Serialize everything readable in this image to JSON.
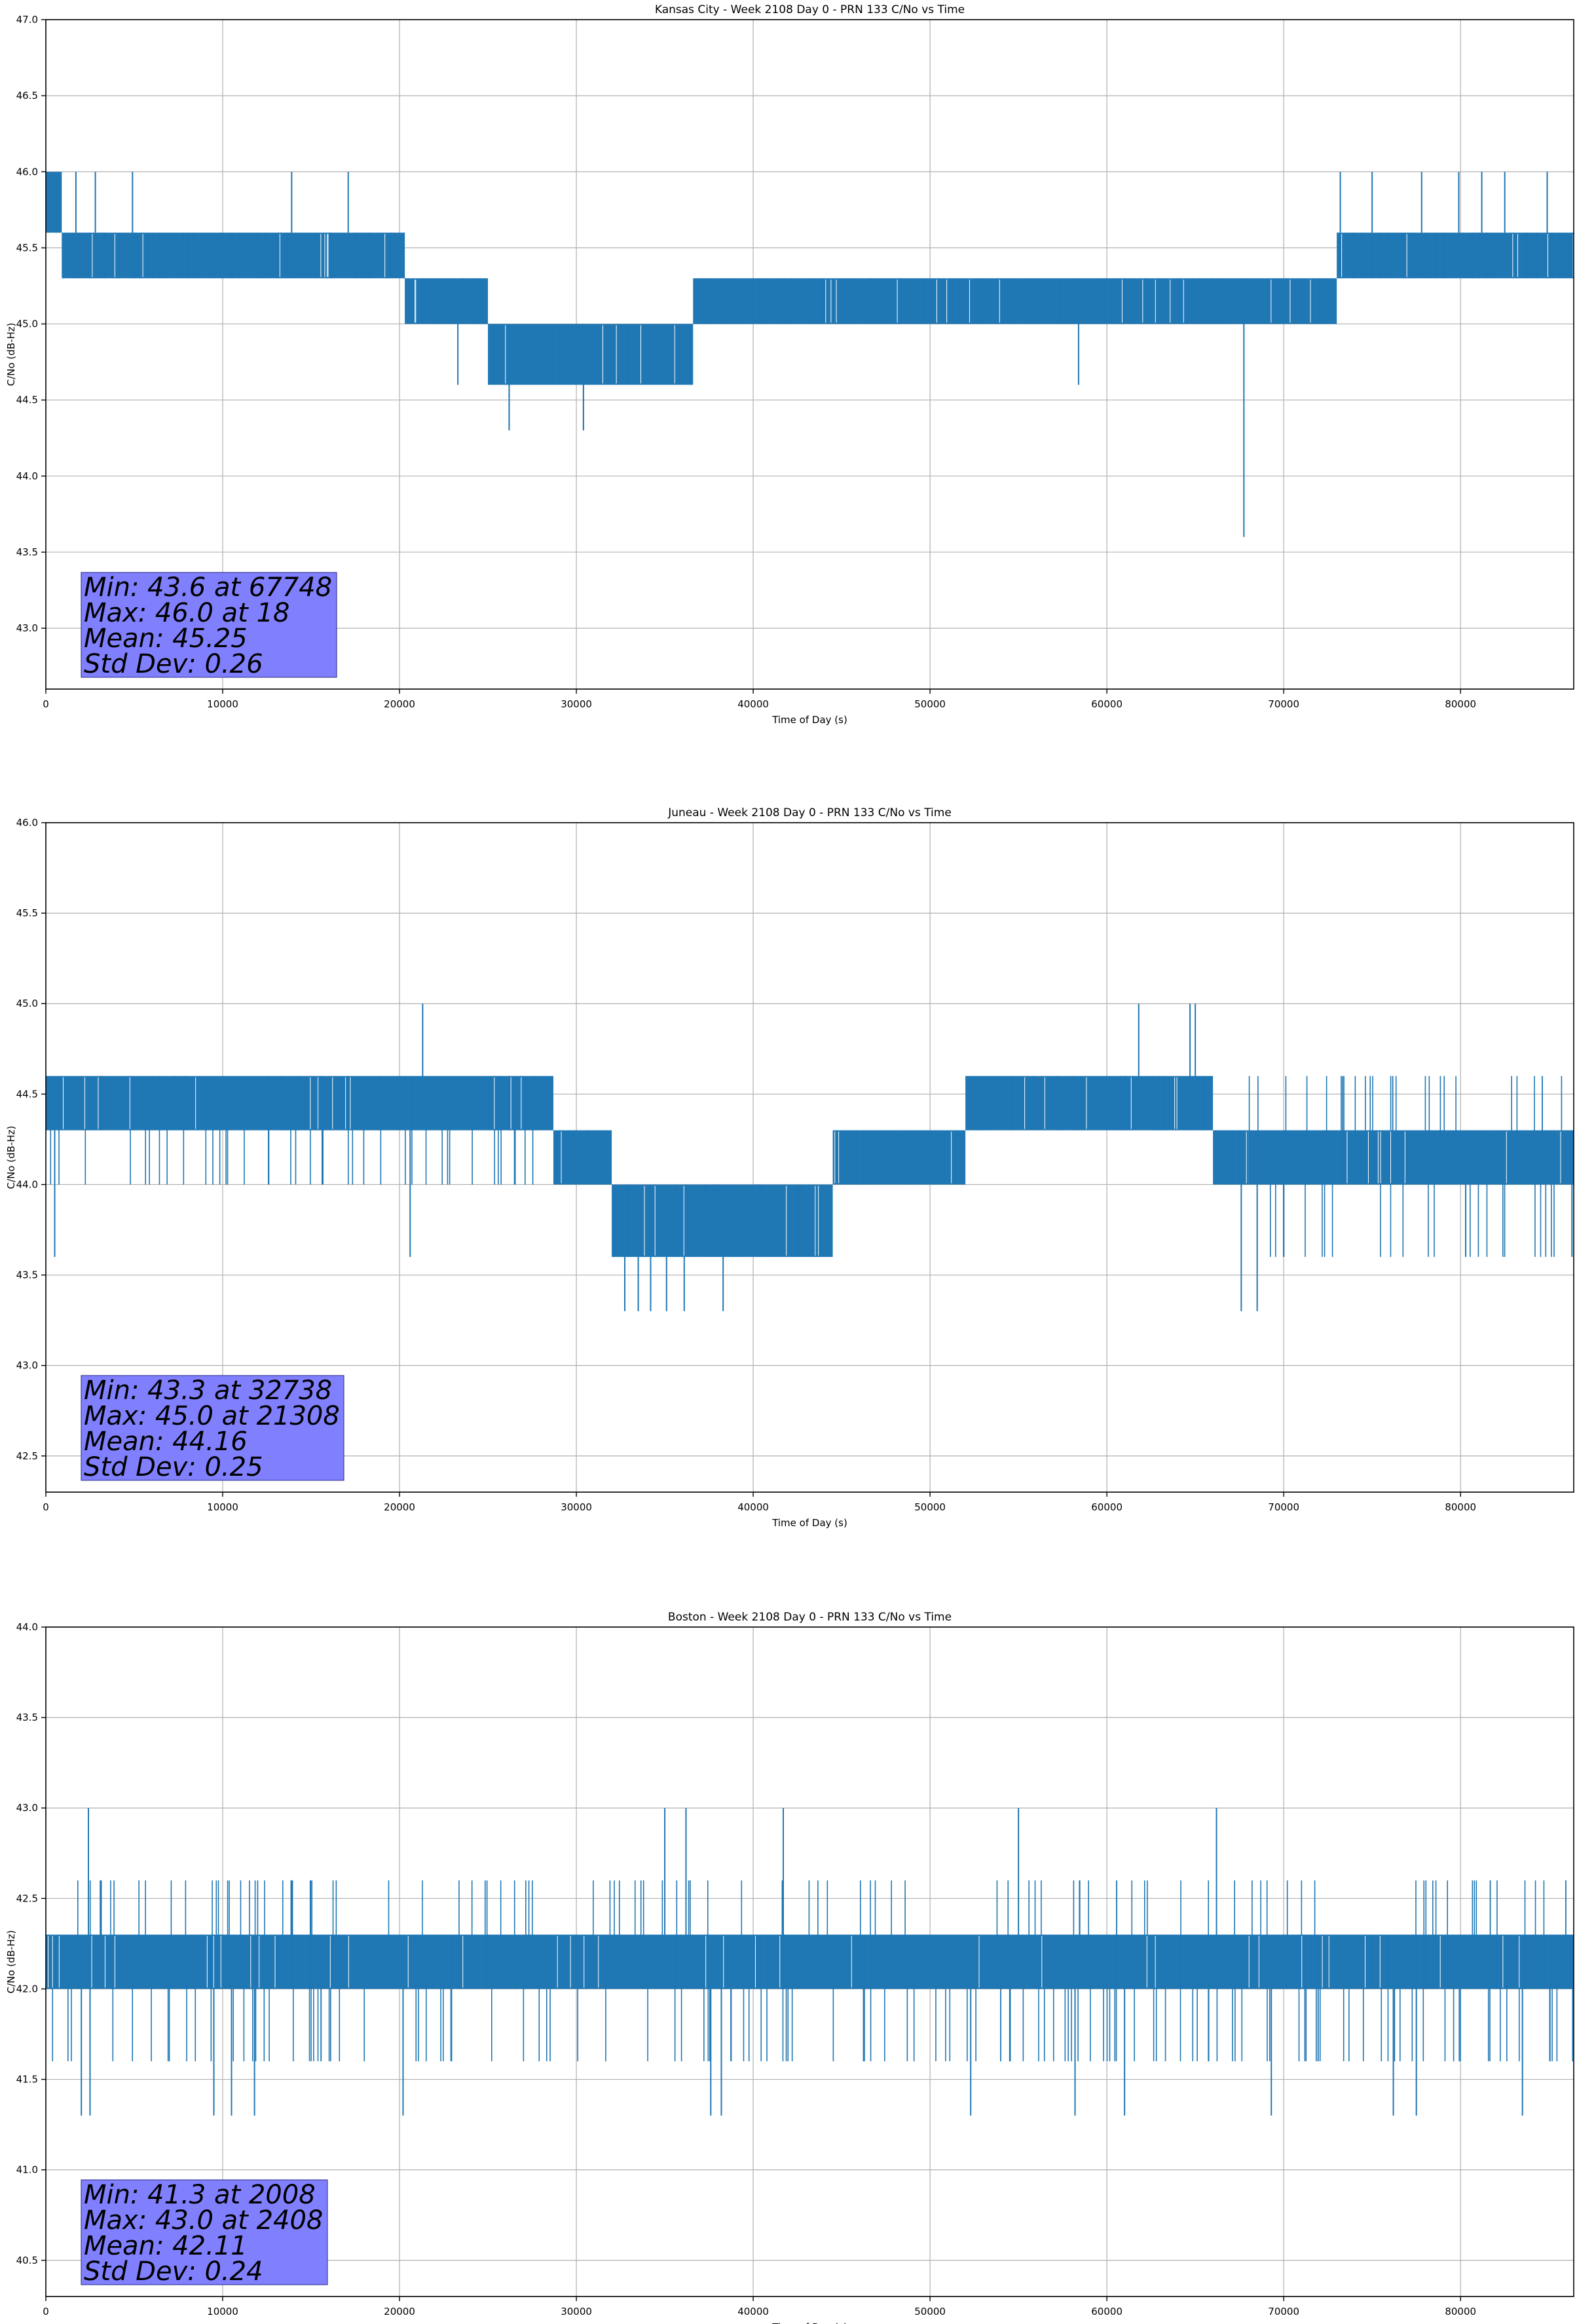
{
  "chart_data": [
    {
      "type": "line",
      "title": "Kansas City - Week 2108 Day 0 - PRN 133 C/No vs Time",
      "xlabel": "Time of Day (s)",
      "ylabel": "C/No (dB-Hz)",
      "xlim": [
        0,
        86400
      ],
      "ylim": [
        42.6,
        47.0
      ],
      "xticks": [
        0,
        10000,
        20000,
        30000,
        40000,
        50000,
        60000,
        70000,
        80000
      ],
      "yticks": [
        43.0,
        43.5,
        44.0,
        44.5,
        45.0,
        45.5,
        46.0,
        46.5,
        47.0
      ],
      "grid": true,
      "series_color": "#1f77b4",
      "series": [
        {
          "name": "",
          "quantization": 0.3,
          "segments": [
            {
              "x_range": [
                0,
                900
              ],
              "levels": [
                45.6,
                46.0
              ]
            },
            {
              "x_range": [
                900,
                6500
              ],
              "levels": [
                45.3,
                45.6
              ]
            },
            {
              "x_range": [
                6500,
                20300
              ],
              "levels": [
                45.3,
                45.6
              ]
            },
            {
              "x_range": [
                20300,
                25000
              ],
              "levels": [
                45.0,
                45.3
              ]
            },
            {
              "x_range": [
                25000,
                36600
              ],
              "levels": [
                44.6,
                45.0
              ]
            },
            {
              "x_range": [
                36600,
                73000
              ],
              "levels": [
                45.0,
                45.3
              ]
            },
            {
              "x_range": [
                73000,
                86400
              ],
              "levels": [
                45.3,
                45.6
              ]
            }
          ],
          "spikes": [
            {
              "x": 18,
              "y": 46.0
            },
            {
              "x": 1700,
              "y": 46.0
            },
            {
              "x": 2800,
              "y": 46.0
            },
            {
              "x": 4900,
              "y": 46.0
            },
            {
              "x": 13900,
              "y": 46.0
            },
            {
              "x": 17100,
              "y": 46.0
            },
            {
              "x": 73200,
              "y": 46.0
            },
            {
              "x": 75000,
              "y": 46.0
            },
            {
              "x": 77800,
              "y": 46.0
            },
            {
              "x": 79900,
              "y": 46.0
            },
            {
              "x": 81200,
              "y": 46.0
            },
            {
              "x": 82500,
              "y": 46.0
            },
            {
              "x": 84900,
              "y": 46.0
            },
            {
              "x": 26200,
              "y": 44.3
            },
            {
              "x": 30400,
              "y": 44.3
            },
            {
              "x": 58400,
              "y": 44.6
            },
            {
              "x": 23300,
              "y": 44.6
            },
            {
              "x": 67748,
              "y": 43.6
            }
          ]
        }
      ],
      "annotation": [
        "Min: 43.6 at 67748",
        "Max: 46.0 at 18",
        "Mean: 45.25",
        "Std Dev: 0.26"
      ]
    },
    {
      "type": "line",
      "title": "Juneau - Week 2108 Day 0 - PRN 133 C/No vs Time",
      "xlabel": "Time of Day (s)",
      "ylabel": "C/No (dB-Hz)",
      "xlim": [
        0,
        86400
      ],
      "ylim": [
        42.3,
        46.0
      ],
      "xticks": [
        0,
        10000,
        20000,
        30000,
        40000,
        50000,
        60000,
        70000,
        80000
      ],
      "yticks": [
        42.5,
        43.0,
        43.5,
        44.0,
        44.5,
        45.0,
        45.5,
        46.0
      ],
      "grid": true,
      "series_color": "#1f77b4",
      "series": [
        {
          "name": "",
          "quantization": 0.3,
          "segments": [
            {
              "x_range": [
                0,
                28700
              ],
              "levels": [
                44.0,
                44.3,
                44.6
              ]
            },
            {
              "x_range": [
                28700,
                32000
              ],
              "levels": [
                44.0,
                44.3
              ]
            },
            {
              "x_range": [
                32000,
                44500
              ],
              "levels": [
                43.6,
                44.0
              ]
            },
            {
              "x_range": [
                44500,
                52000
              ],
              "levels": [
                44.0,
                44.3
              ]
            },
            {
              "x_range": [
                52000,
                66000
              ],
              "levels": [
                44.3,
                44.6
              ]
            },
            {
              "x_range": [
                66000,
                68000
              ],
              "levels": [
                44.0,
                44.3
              ]
            },
            {
              "x_range": [
                68000,
                86400
              ],
              "levels": [
                43.6,
                44.0,
                44.3,
                44.6
              ]
            }
          ],
          "spikes": [
            {
              "x": 21308,
              "y": 45.0
            },
            {
              "x": 61800,
              "y": 45.0
            },
            {
              "x": 64700,
              "y": 45.0
            },
            {
              "x": 65000,
              "y": 45.0
            },
            {
              "x": 500,
              "y": 43.6
            },
            {
              "x": 20600,
              "y": 43.6
            },
            {
              "x": 32738,
              "y": 43.3
            },
            {
              "x": 33500,
              "y": 43.3
            },
            {
              "x": 34200,
              "y": 43.3
            },
            {
              "x": 35100,
              "y": 43.3
            },
            {
              "x": 36100,
              "y": 43.3
            },
            {
              "x": 38300,
              "y": 43.3
            },
            {
              "x": 67600,
              "y": 43.3
            },
            {
              "x": 68500,
              "y": 43.3
            },
            {
              "x": 86300,
              "y": 43.6
            }
          ]
        }
      ],
      "annotation": [
        "Min: 43.3 at 32738",
        "Max: 45.0 at 21308",
        "Mean: 44.16",
        "Std Dev: 0.25"
      ]
    },
    {
      "type": "line",
      "title": "Boston - Week 2108 Day 0 - PRN 133 C/No vs Time",
      "xlabel": "Time of Day (s)",
      "ylabel": "C/No (dB-Hz)",
      "xlim": [
        0,
        86400
      ],
      "ylim": [
        40.3,
        44.0
      ],
      "xticks": [
        0,
        10000,
        20000,
        30000,
        40000,
        50000,
        60000,
        70000,
        80000
      ],
      "yticks": [
        40.5,
        41.0,
        41.5,
        42.0,
        42.5,
        43.0,
        43.5,
        44.0
      ],
      "grid": true,
      "series_color": "#1f77b4",
      "series": [
        {
          "name": "",
          "quantization": 0.3,
          "segments": [
            {
              "x_range": [
                0,
                86400
              ],
              "levels": [
                41.6,
                42.0,
                42.3,
                42.6
              ]
            }
          ],
          "spikes": [
            {
              "x": 2408,
              "y": 43.0
            },
            {
              "x": 35000,
              "y": 43.0
            },
            {
              "x": 36200,
              "y": 43.0
            },
            {
              "x": 41700,
              "y": 43.0
            },
            {
              "x": 55000,
              "y": 43.0
            },
            {
              "x": 66200,
              "y": 43.0
            },
            {
              "x": 2008,
              "y": 41.3
            },
            {
              "x": 2500,
              "y": 41.3
            },
            {
              "x": 9500,
              "y": 41.3
            },
            {
              "x": 10500,
              "y": 41.3
            },
            {
              "x": 11800,
              "y": 41.3
            },
            {
              "x": 20200,
              "y": 41.3
            },
            {
              "x": 37600,
              "y": 41.3
            },
            {
              "x": 38200,
              "y": 41.3
            },
            {
              "x": 52300,
              "y": 41.3
            },
            {
              "x": 58200,
              "y": 41.3
            },
            {
              "x": 61000,
              "y": 41.3
            },
            {
              "x": 69300,
              "y": 41.3
            },
            {
              "x": 76200,
              "y": 41.3
            },
            {
              "x": 77500,
              "y": 41.3
            },
            {
              "x": 83500,
              "y": 41.3
            }
          ]
        }
      ],
      "annotation": [
        "Min: 41.3 at 2008",
        "Max: 43.0 at 2408",
        "Mean: 42.11",
        "Std Dev: 0.24"
      ]
    }
  ]
}
